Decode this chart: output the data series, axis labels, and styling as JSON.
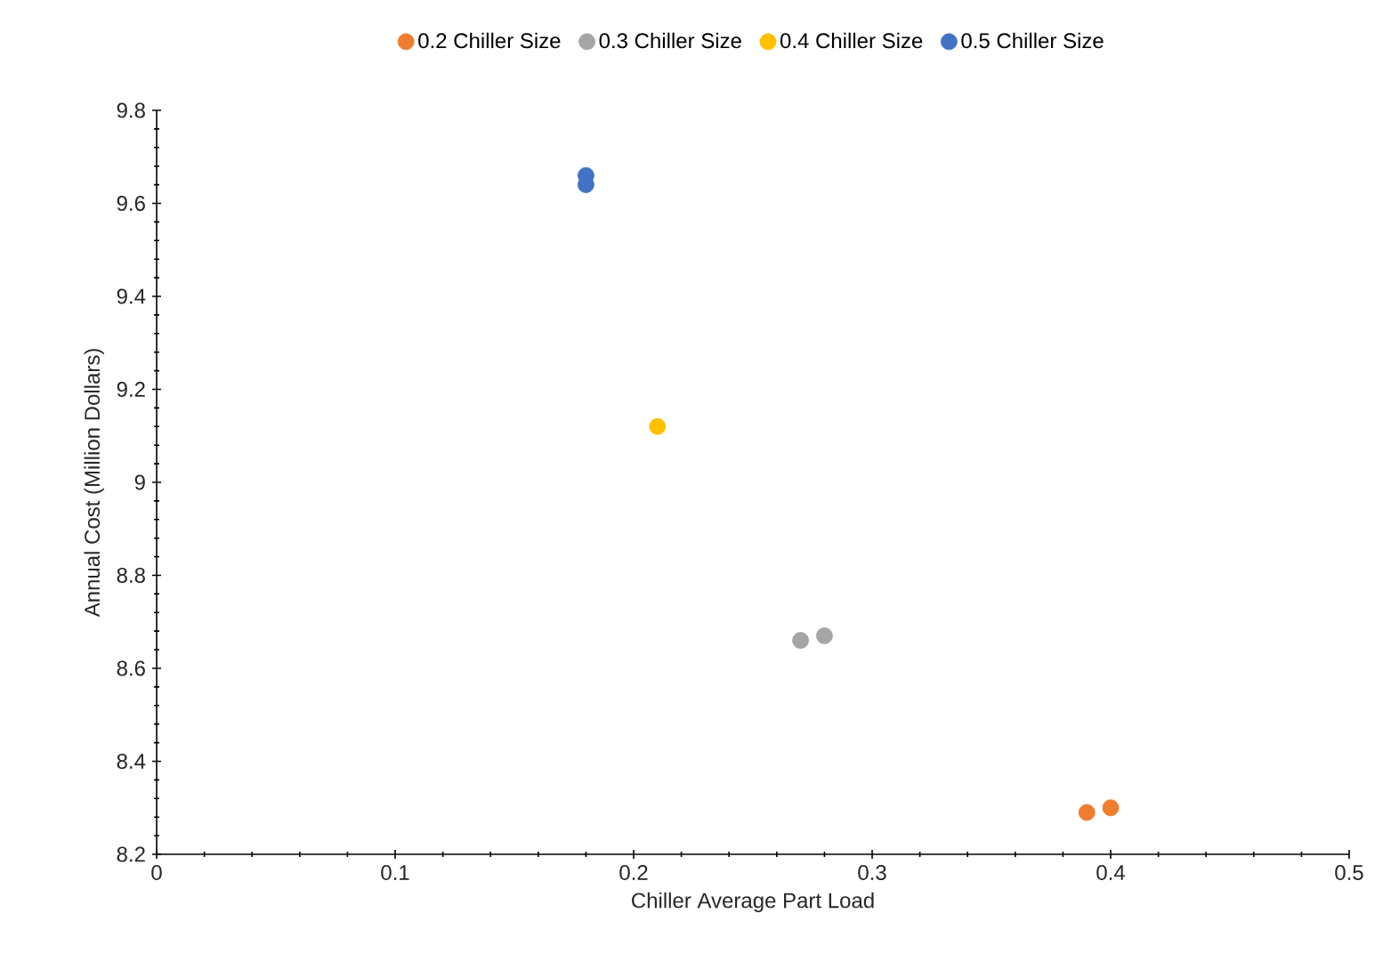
{
  "chart_data": {
    "type": "scatter",
    "xlabel": "Chiller Average Part Load",
    "ylabel": "Annual Cost (Million Dollars)",
    "xlim": [
      0,
      0.5
    ],
    "ylim": [
      8.2,
      9.8
    ],
    "xticks": [
      0,
      0.1,
      0.2,
      0.3,
      0.4,
      0.5
    ],
    "yticks": [
      8.2,
      8.4,
      8.6,
      8.8,
      9,
      9.2,
      9.4,
      9.6,
      9.8
    ],
    "grid": false,
    "legend": "top",
    "marker": "circle",
    "series": [
      {
        "name": "0.2 Chiller Size",
        "color": "#ed7d31",
        "x": [
          0.39,
          0.4
        ],
        "values": [
          8.29,
          8.3
        ]
      },
      {
        "name": "0.3 Chiller Size",
        "color": "#a5a5a5",
        "x": [
          0.27,
          0.28
        ],
        "values": [
          8.66,
          8.67
        ]
      },
      {
        "name": "0.4 Chiller Size",
        "color": "#ffc000",
        "x": [
          0.21
        ],
        "values": [
          9.12
        ]
      },
      {
        "name": "0.5 Chiller Size",
        "color": "#4472c4",
        "x": [
          0.18,
          0.18
        ],
        "values": [
          9.64,
          9.66
        ]
      }
    ]
  }
}
